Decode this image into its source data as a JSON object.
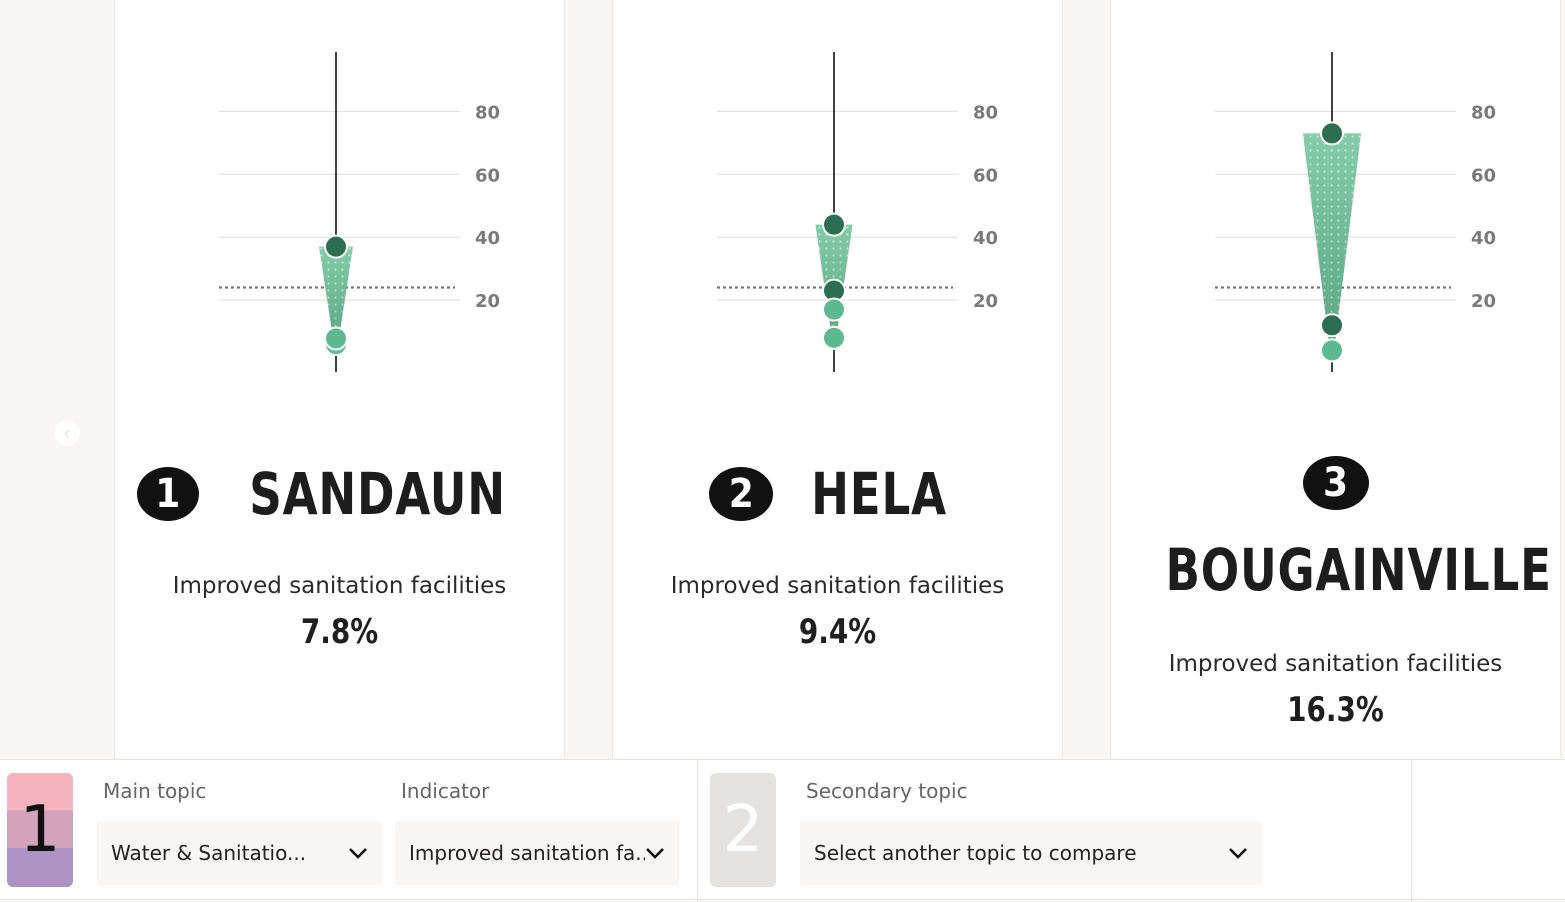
{
  "chart_data": [
    {
      "type": "range-dot",
      "rank": "1",
      "region": "SANDAUN",
      "metric_label": "Improved sanitation facilities",
      "metric_value": "7.8%",
      "y_ticks": [
        "20",
        "40",
        "60",
        "80"
      ],
      "ylim": [
        0,
        100
      ],
      "reference_line": 24,
      "high_value": 37,
      "low_values": [
        6,
        7.8
      ],
      "colors": {
        "high": "#2b6e50",
        "low": "#5dba8f",
        "band": "#7cc7a3"
      }
    },
    {
      "type": "range-dot",
      "rank": "2",
      "region": "HELA",
      "metric_label": "Improved sanitation facilities",
      "metric_value": "9.4%",
      "y_ticks": [
        "20",
        "40",
        "60",
        "80"
      ],
      "ylim": [
        0,
        100
      ],
      "reference_line": 24,
      "high_value": 44,
      "low_values": [
        23,
        17,
        8
      ],
      "colors": {
        "high": "#2b6e50",
        "low": "#5dba8f",
        "band": "#7cc7a3"
      }
    },
    {
      "type": "range-dot",
      "rank": "3",
      "region": "BOUGAINVILLE",
      "metric_label": "Improved sanitation facilities",
      "metric_value": "16.3%",
      "y_ticks": [
        "20",
        "40",
        "60",
        "80"
      ],
      "ylim": [
        0,
        100
      ],
      "reference_line": 24,
      "high_value": 73,
      "low_values": [
        12,
        4
      ],
      "colors": {
        "high": "#2b6e50",
        "low": "#5dba8f",
        "band": "#7cc7a3"
      }
    }
  ],
  "toolbar": {
    "step1": "1",
    "step2": "2",
    "main_topic_label": "Main topic",
    "main_topic_value": "Water & Sanitatio...",
    "indicator_label": "Indicator",
    "indicator_value": "Improved sanitation fa...",
    "secondary_label": "Secondary topic",
    "secondary_value": "Select another topic to compare"
  },
  "icons": {
    "nav": "chevron-left-icon",
    "dropdown": "chevron-down-icon"
  }
}
